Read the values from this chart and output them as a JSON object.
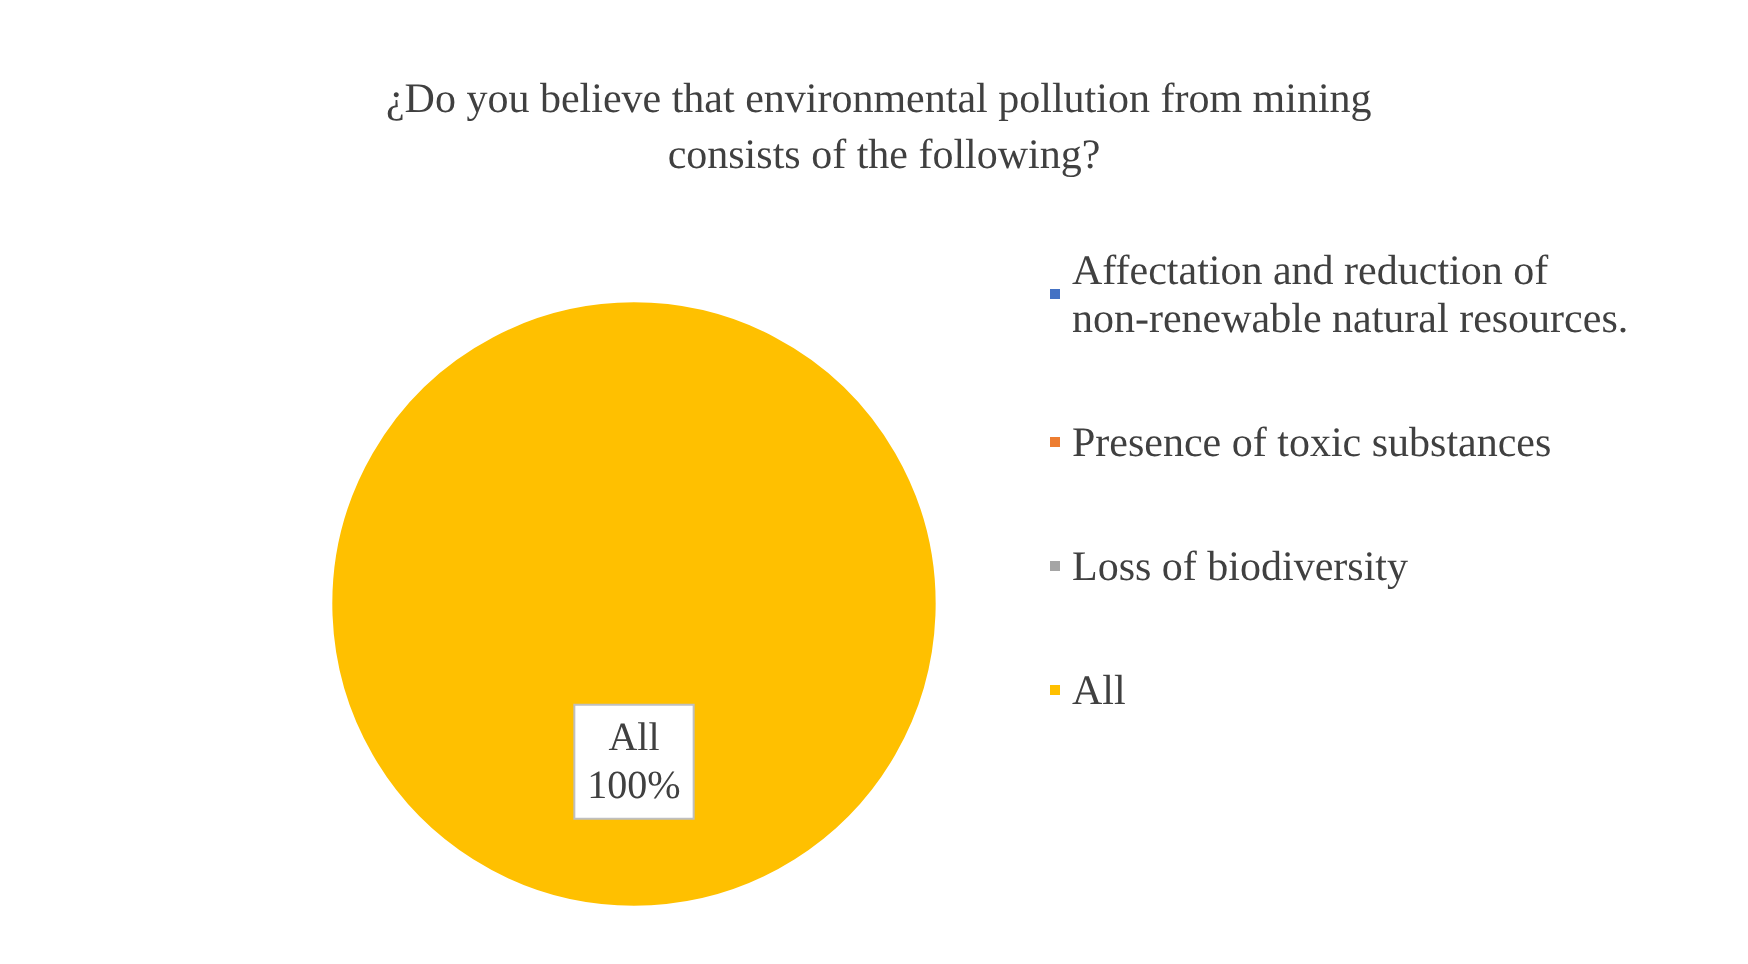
{
  "chart_data": {
    "type": "pie",
    "title": "¿Do you believe that environmental pollution from mining consists of the following?",
    "categories": [
      "Affectation and reduction of non-renewable natural resources.",
      "Presence of toxic substances",
      "Loss of biodiversity",
      "All"
    ],
    "values": [
      0,
      0,
      0,
      100
    ],
    "colors": [
      "#4472c4",
      "#ed7d31",
      "#a5a5a5",
      "#ffc000"
    ],
    "value_labels": [
      null,
      null,
      null,
      "100%"
    ],
    "legend": "right"
  }
}
